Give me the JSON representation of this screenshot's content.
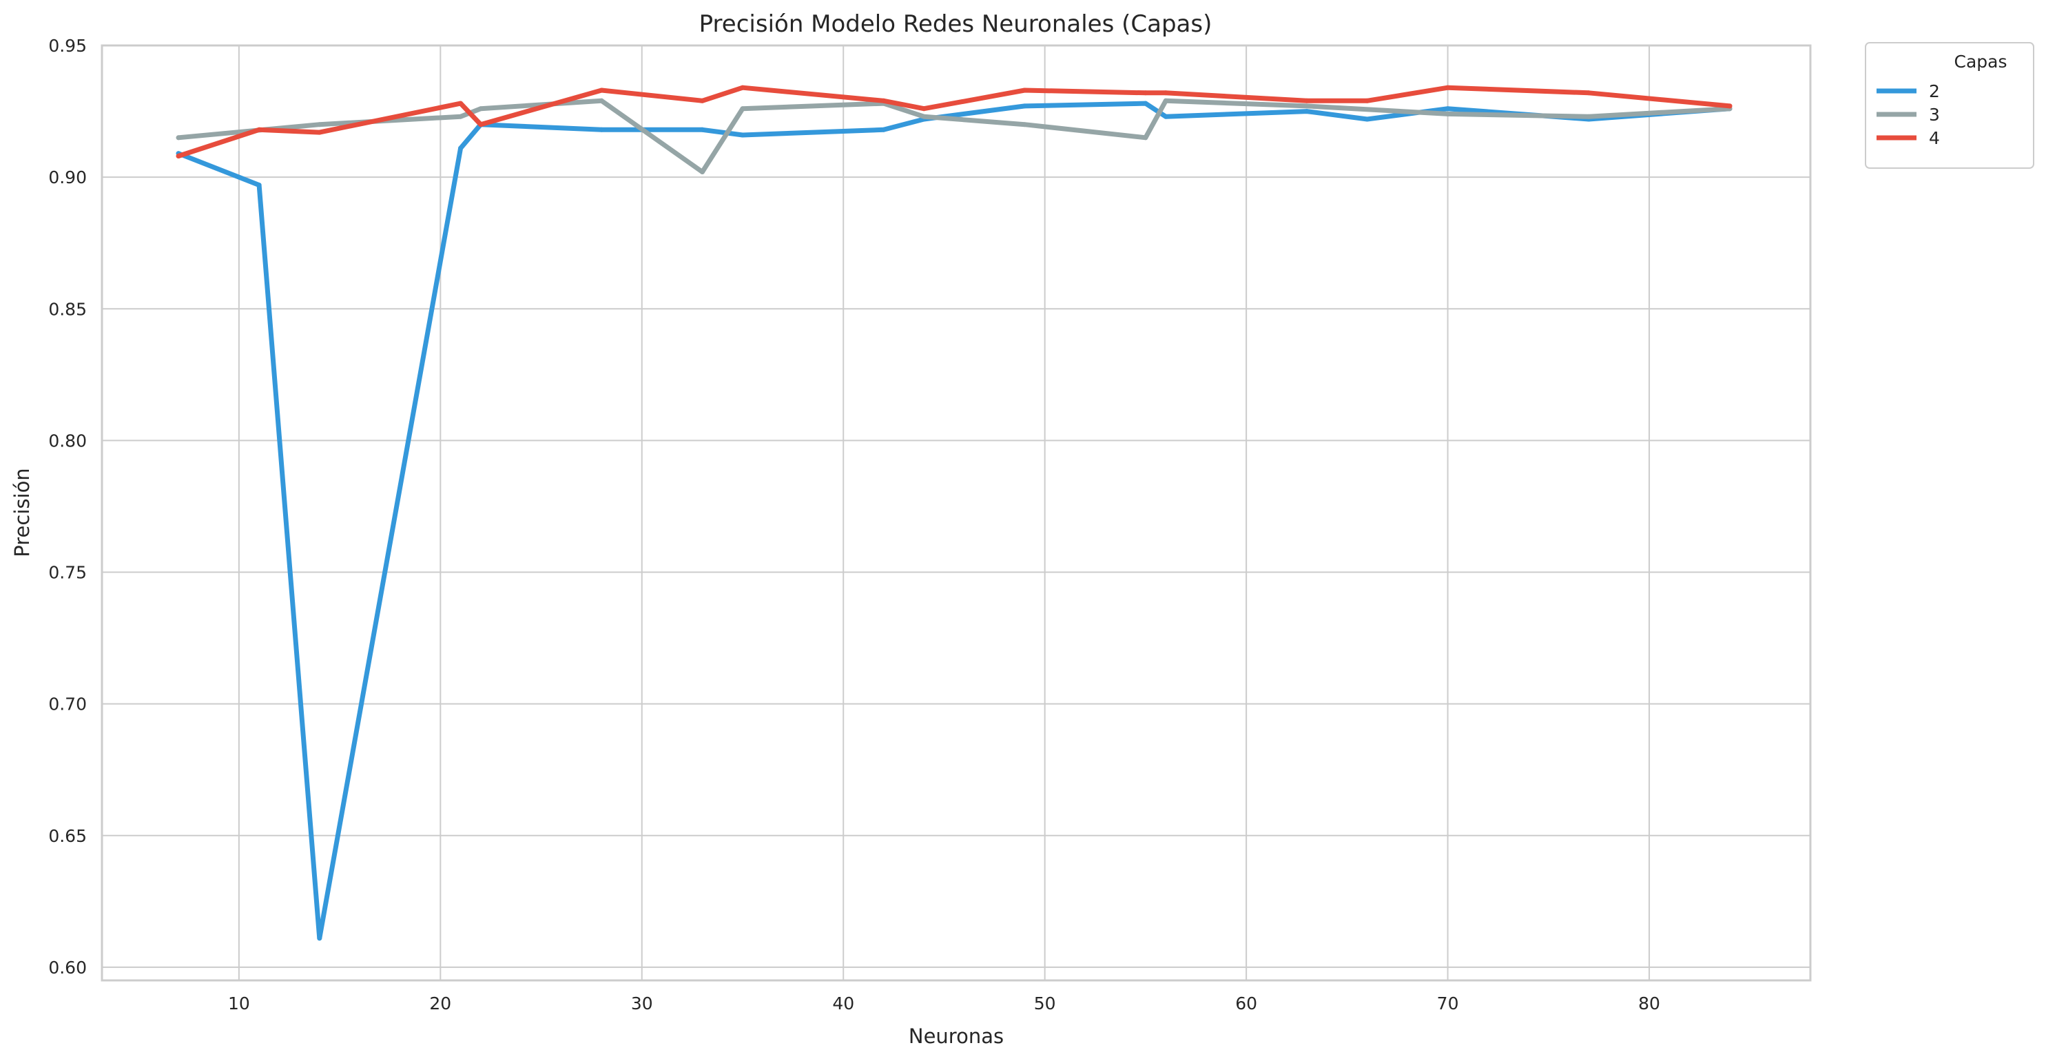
{
  "chart_data": {
    "type": "line",
    "title": "Precisión Modelo Redes Neuronales (Capas)",
    "xlabel": "Neuronas",
    "ylabel": "Precisión",
    "xlim": [
      3.2,
      88
    ],
    "ylim": [
      0.595,
      0.95
    ],
    "xticks": [
      10,
      20,
      30,
      40,
      50,
      60,
      70,
      80
    ],
    "xtick_labels": [
      "10",
      "20",
      "30",
      "40",
      "50",
      "60",
      "70",
      "80"
    ],
    "yticks": [
      0.6,
      0.65,
      0.7,
      0.75,
      0.8,
      0.85,
      0.9,
      0.95
    ],
    "ytick_labels": [
      "0.60",
      "0.65",
      "0.70",
      "0.75",
      "0.80",
      "0.85",
      "0.90",
      "0.95"
    ],
    "grid": true,
    "legend": {
      "title": "Capas",
      "placement": "outside-top-right"
    },
    "series": [
      {
        "name": "2",
        "color": "#3498db",
        "points": [
          [
            7,
            0.909
          ],
          [
            11,
            0.897
          ],
          [
            14,
            0.611
          ],
          [
            21,
            0.911
          ],
          [
            22,
            0.92
          ],
          [
            28,
            0.918
          ],
          [
            33,
            0.918
          ],
          [
            35,
            0.916
          ],
          [
            42,
            0.918
          ],
          [
            44,
            0.922
          ],
          [
            49,
            0.927
          ],
          [
            55,
            0.928
          ],
          [
            56,
            0.923
          ],
          [
            63,
            0.925
          ],
          [
            66,
            0.922
          ],
          [
            70,
            0.926
          ],
          [
            77,
            0.922
          ],
          [
            84,
            0.926
          ]
        ]
      },
      {
        "name": "3",
        "color": "#95a5a6",
        "points": [
          [
            7,
            0.915
          ],
          [
            14,
            0.92
          ],
          [
            21,
            0.923
          ],
          [
            22,
            0.926
          ],
          [
            28,
            0.929
          ],
          [
            33,
            0.902
          ],
          [
            35,
            0.926
          ],
          [
            42,
            0.928
          ],
          [
            44,
            0.923
          ],
          [
            49,
            0.92
          ],
          [
            55,
            0.915
          ],
          [
            56,
            0.929
          ],
          [
            63,
            0.927
          ],
          [
            70,
            0.924
          ],
          [
            77,
            0.923
          ],
          [
            84,
            0.926
          ]
        ]
      },
      {
        "name": "4",
        "color": "#e74c3c",
        "points": [
          [
            7,
            0.908
          ],
          [
            11,
            0.918
          ],
          [
            14,
            0.917
          ],
          [
            21,
            0.928
          ],
          [
            22,
            0.92
          ],
          [
            28,
            0.933
          ],
          [
            33,
            0.929
          ],
          [
            35,
            0.934
          ],
          [
            42,
            0.929
          ],
          [
            44,
            0.926
          ],
          [
            49,
            0.933
          ],
          [
            55,
            0.932
          ],
          [
            56,
            0.932
          ],
          [
            63,
            0.929
          ],
          [
            66,
            0.929
          ],
          [
            70,
            0.934
          ],
          [
            77,
            0.932
          ],
          [
            84,
            0.927
          ]
        ]
      }
    ]
  }
}
